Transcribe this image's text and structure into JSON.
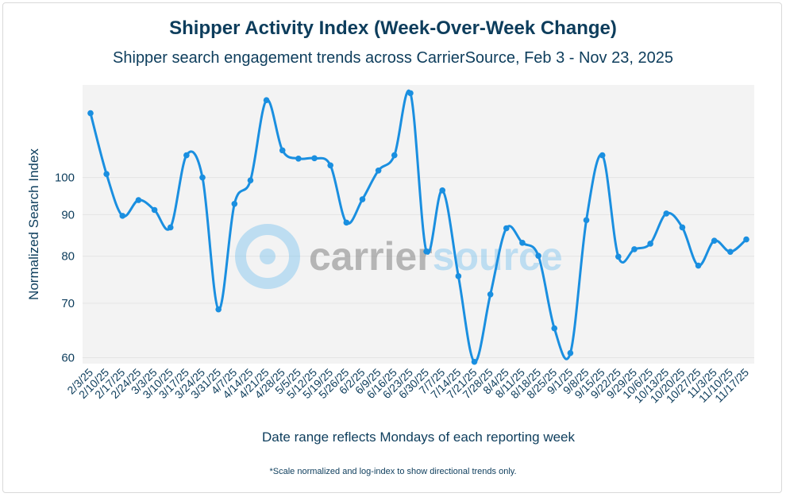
{
  "chart_data": {
    "type": "line",
    "title": "Shipper Activity Index (Week-Over-Week Change)",
    "subtitle": "Shipper search engagement trends across CarrierSource, Feb 3 - Nov 23, 2025",
    "xlabel": "Date range reflects Mondays of each reporting week",
    "ylabel": "Normalized Search Index",
    "footnote": "*Scale normalized and log-index to show directional trends only.",
    "watermark": "carriersource",
    "y_scale": "log",
    "ylim": [
      59,
      130
    ],
    "yticks": [
      60,
      70,
      80,
      90,
      100
    ],
    "grid": true,
    "line_color": "#1a8fe0",
    "categories": [
      "2/3/25",
      "2/10/25",
      "2/17/25",
      "2/24/25",
      "3/3/25",
      "3/10/25",
      "3/17/25",
      "3/24/25",
      "3/31/25",
      "4/7/25",
      "4/14/25",
      "4/21/25",
      "4/28/25",
      "5/5/25",
      "5/12/25",
      "5/19/25",
      "5/26/25",
      "6/2/25",
      "6/9/25",
      "6/16/25",
      "6/23/25",
      "6/30/25",
      "7/7/25",
      "7/14/25",
      "7/21/25",
      "7/28/25",
      "8/4/25",
      "8/11/25",
      "8/18/25",
      "8/25/25",
      "9/1/25",
      "9/8/25",
      "9/15/25",
      "9/22/25",
      "9/29/25",
      "10/6/25",
      "10/13/25",
      "10/20/25",
      "10/27/25",
      "11/3/25",
      "11/10/25",
      "11/17/25"
    ],
    "values": [
      120,
      101,
      89.7,
      93.8,
      91.2,
      86.8,
      106.5,
      100,
      68.8,
      92.8,
      99.2,
      124.5,
      108,
      105.5,
      105.6,
      103.5,
      88,
      94,
      102,
      106.5,
      127,
      81.1,
      96.4,
      75.6,
      59.3,
      71.8,
      86.6,
      83.1,
      80.1,
      65.2,
      60.8,
      88.6,
      106.5,
      79.9,
      81.6,
      82.9,
      90.3,
      86.8,
      77.9,
      83.6,
      81,
      83.9
    ]
  }
}
